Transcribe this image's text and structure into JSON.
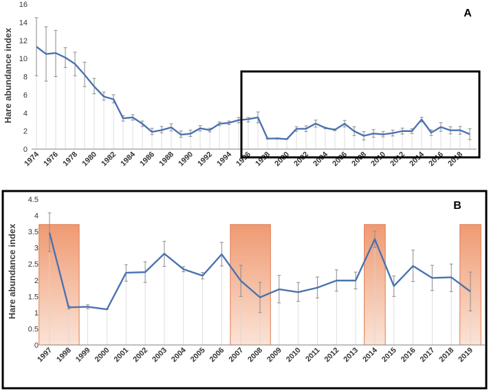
{
  "colors": {
    "line": "#4a72b0",
    "error_bar": "#8a8a8a",
    "grid_drop": "#d6d6d6",
    "axis": "#7f7f7f",
    "highlight_top": "#ef9a72",
    "highlight_bottom": "#fbe3d6",
    "highlight_border": "#e07a50",
    "frame": "#000000"
  },
  "chart_data": [
    {
      "panel_label": "A",
      "type": "line",
      "ylabel": "Hare abundance index",
      "xlabel": "",
      "ylim": [
        0,
        16
      ],
      "yticks": [
        "0",
        "2",
        "4",
        "6",
        "8",
        "10",
        "12",
        "14",
        "16"
      ],
      "x": [
        1974,
        1975,
        1976,
        1977,
        1978,
        1979,
        1980,
        1981,
        1982,
        1983,
        1984,
        1985,
        1986,
        1987,
        1988,
        1989,
        1990,
        1991,
        1992,
        1993,
        1994,
        1995,
        1996,
        1997,
        1998,
        1999,
        2000,
        2001,
        2002,
        2003,
        2004,
        2005,
        2006,
        2007,
        2008,
        2009,
        2010,
        2011,
        2012,
        2013,
        2014,
        2015,
        2016,
        2017,
        2018,
        2019
      ],
      "values": [
        11.3,
        10.5,
        10.6,
        10.1,
        9.4,
        8.2,
        6.9,
        5.8,
        5.5,
        3.4,
        3.5,
        2.8,
        1.9,
        2.1,
        2.4,
        1.6,
        1.7,
        2.3,
        2.1,
        2.8,
        2.9,
        3.2,
        3.3,
        3.5,
        1.16,
        1.18,
        1.1,
        2.23,
        2.25,
        2.82,
        2.34,
        2.14,
        2.8,
        1.98,
        1.47,
        1.72,
        1.63,
        1.77,
        1.99,
        1.99,
        3.27,
        1.82,
        2.44,
        2.07,
        2.09,
        1.65
      ],
      "error_low": [
        8.1,
        7.5,
        8.0,
        9.0,
        8.1,
        6.9,
        6.1,
        5.4,
        5.1,
        3.1,
        3.2,
        2.5,
        1.6,
        1.8,
        2.0,
        1.3,
        1.4,
        2.0,
        1.9,
        2.6,
        2.7,
        2.9,
        3.0,
        2.9,
        1.11,
        1.12,
        1.1,
        1.97,
        1.93,
        2.43,
        2.26,
        2.04,
        2.44,
        1.5,
        1.0,
        1.3,
        1.35,
        1.45,
        1.66,
        1.73,
        3.01,
        1.5,
        1.96,
        1.68,
        1.65,
        1.05
      ],
      "error_high": [
        14.5,
        13.5,
        13.1,
        11.2,
        10.7,
        9.6,
        7.8,
        6.3,
        6.0,
        3.7,
        3.8,
        3.1,
        2.3,
        2.5,
        2.8,
        2.0,
        2.1,
        2.6,
        2.3,
        3.0,
        3.1,
        3.5,
        3.5,
        4.1,
        1.21,
        1.24,
        1.1,
        2.48,
        2.57,
        3.2,
        2.42,
        2.24,
        3.17,
        2.46,
        1.93,
        2.15,
        1.93,
        2.1,
        2.32,
        2.25,
        3.52,
        2.13,
        2.93,
        2.46,
        2.5,
        2.25
      ],
      "xtick_labels": [
        "1974",
        "1976",
        "1978",
        "1980",
        "1982",
        "1984",
        "1986",
        "1988",
        "1990",
        "1992",
        "1994",
        "1996",
        "1998",
        "2000",
        "2002",
        "2004",
        "2006",
        "2008",
        "2010",
        "2012",
        "2014",
        "2016",
        "2018"
      ],
      "zoom_box_years": [
        1997,
        2019
      ],
      "grid": false,
      "legend": false
    },
    {
      "panel_label": "B",
      "type": "line",
      "ylabel": "Hare abundance index",
      "xlabel": "",
      "ylim": [
        0,
        4.5
      ],
      "yticks": [
        "0",
        "0.5",
        "1",
        "1.5",
        "2",
        "2.5",
        "3",
        "3.5",
        "4",
        "4.5"
      ],
      "categories": [
        "1997",
        "1998",
        "1999",
        "2000",
        "2001",
        "2002",
        "2003",
        "2004",
        "2005",
        "2006",
        "2007",
        "2008",
        "2009",
        "2010",
        "2011",
        "2012",
        "2013",
        "2014",
        "2015",
        "2016",
        "2017",
        "2018",
        "2019"
      ],
      "values": [
        3.47,
        1.16,
        1.18,
        1.1,
        2.23,
        2.25,
        2.82,
        2.34,
        2.14,
        2.8,
        1.98,
        1.47,
        1.72,
        1.63,
        1.77,
        1.99,
        1.99,
        3.27,
        1.82,
        2.44,
        2.07,
        2.09,
        1.65
      ],
      "error_low": [
        2.88,
        1.11,
        1.12,
        1.1,
        1.97,
        1.93,
        2.43,
        2.26,
        2.04,
        2.44,
        1.5,
        1.0,
        1.3,
        1.35,
        1.45,
        1.66,
        1.73,
        3.01,
        1.5,
        1.96,
        1.68,
        1.65,
        1.05
      ],
      "error_high": [
        4.08,
        1.21,
        1.24,
        1.1,
        2.48,
        2.57,
        3.2,
        2.42,
        2.24,
        3.17,
        2.46,
        1.93,
        2.15,
        1.93,
        2.1,
        2.32,
        2.25,
        3.52,
        2.13,
        2.93,
        2.46,
        2.5,
        2.25
      ],
      "highlight_spans": [
        {
          "from": "1997",
          "to": "1998",
          "top": 3.72
        },
        {
          "from": "2007",
          "to": "2008",
          "top": 3.72
        },
        {
          "from": "2014",
          "to": "2014",
          "top": 3.72
        },
        {
          "from": "2019",
          "to": "2019",
          "top": 3.72
        }
      ],
      "grid": false,
      "legend": false
    }
  ]
}
